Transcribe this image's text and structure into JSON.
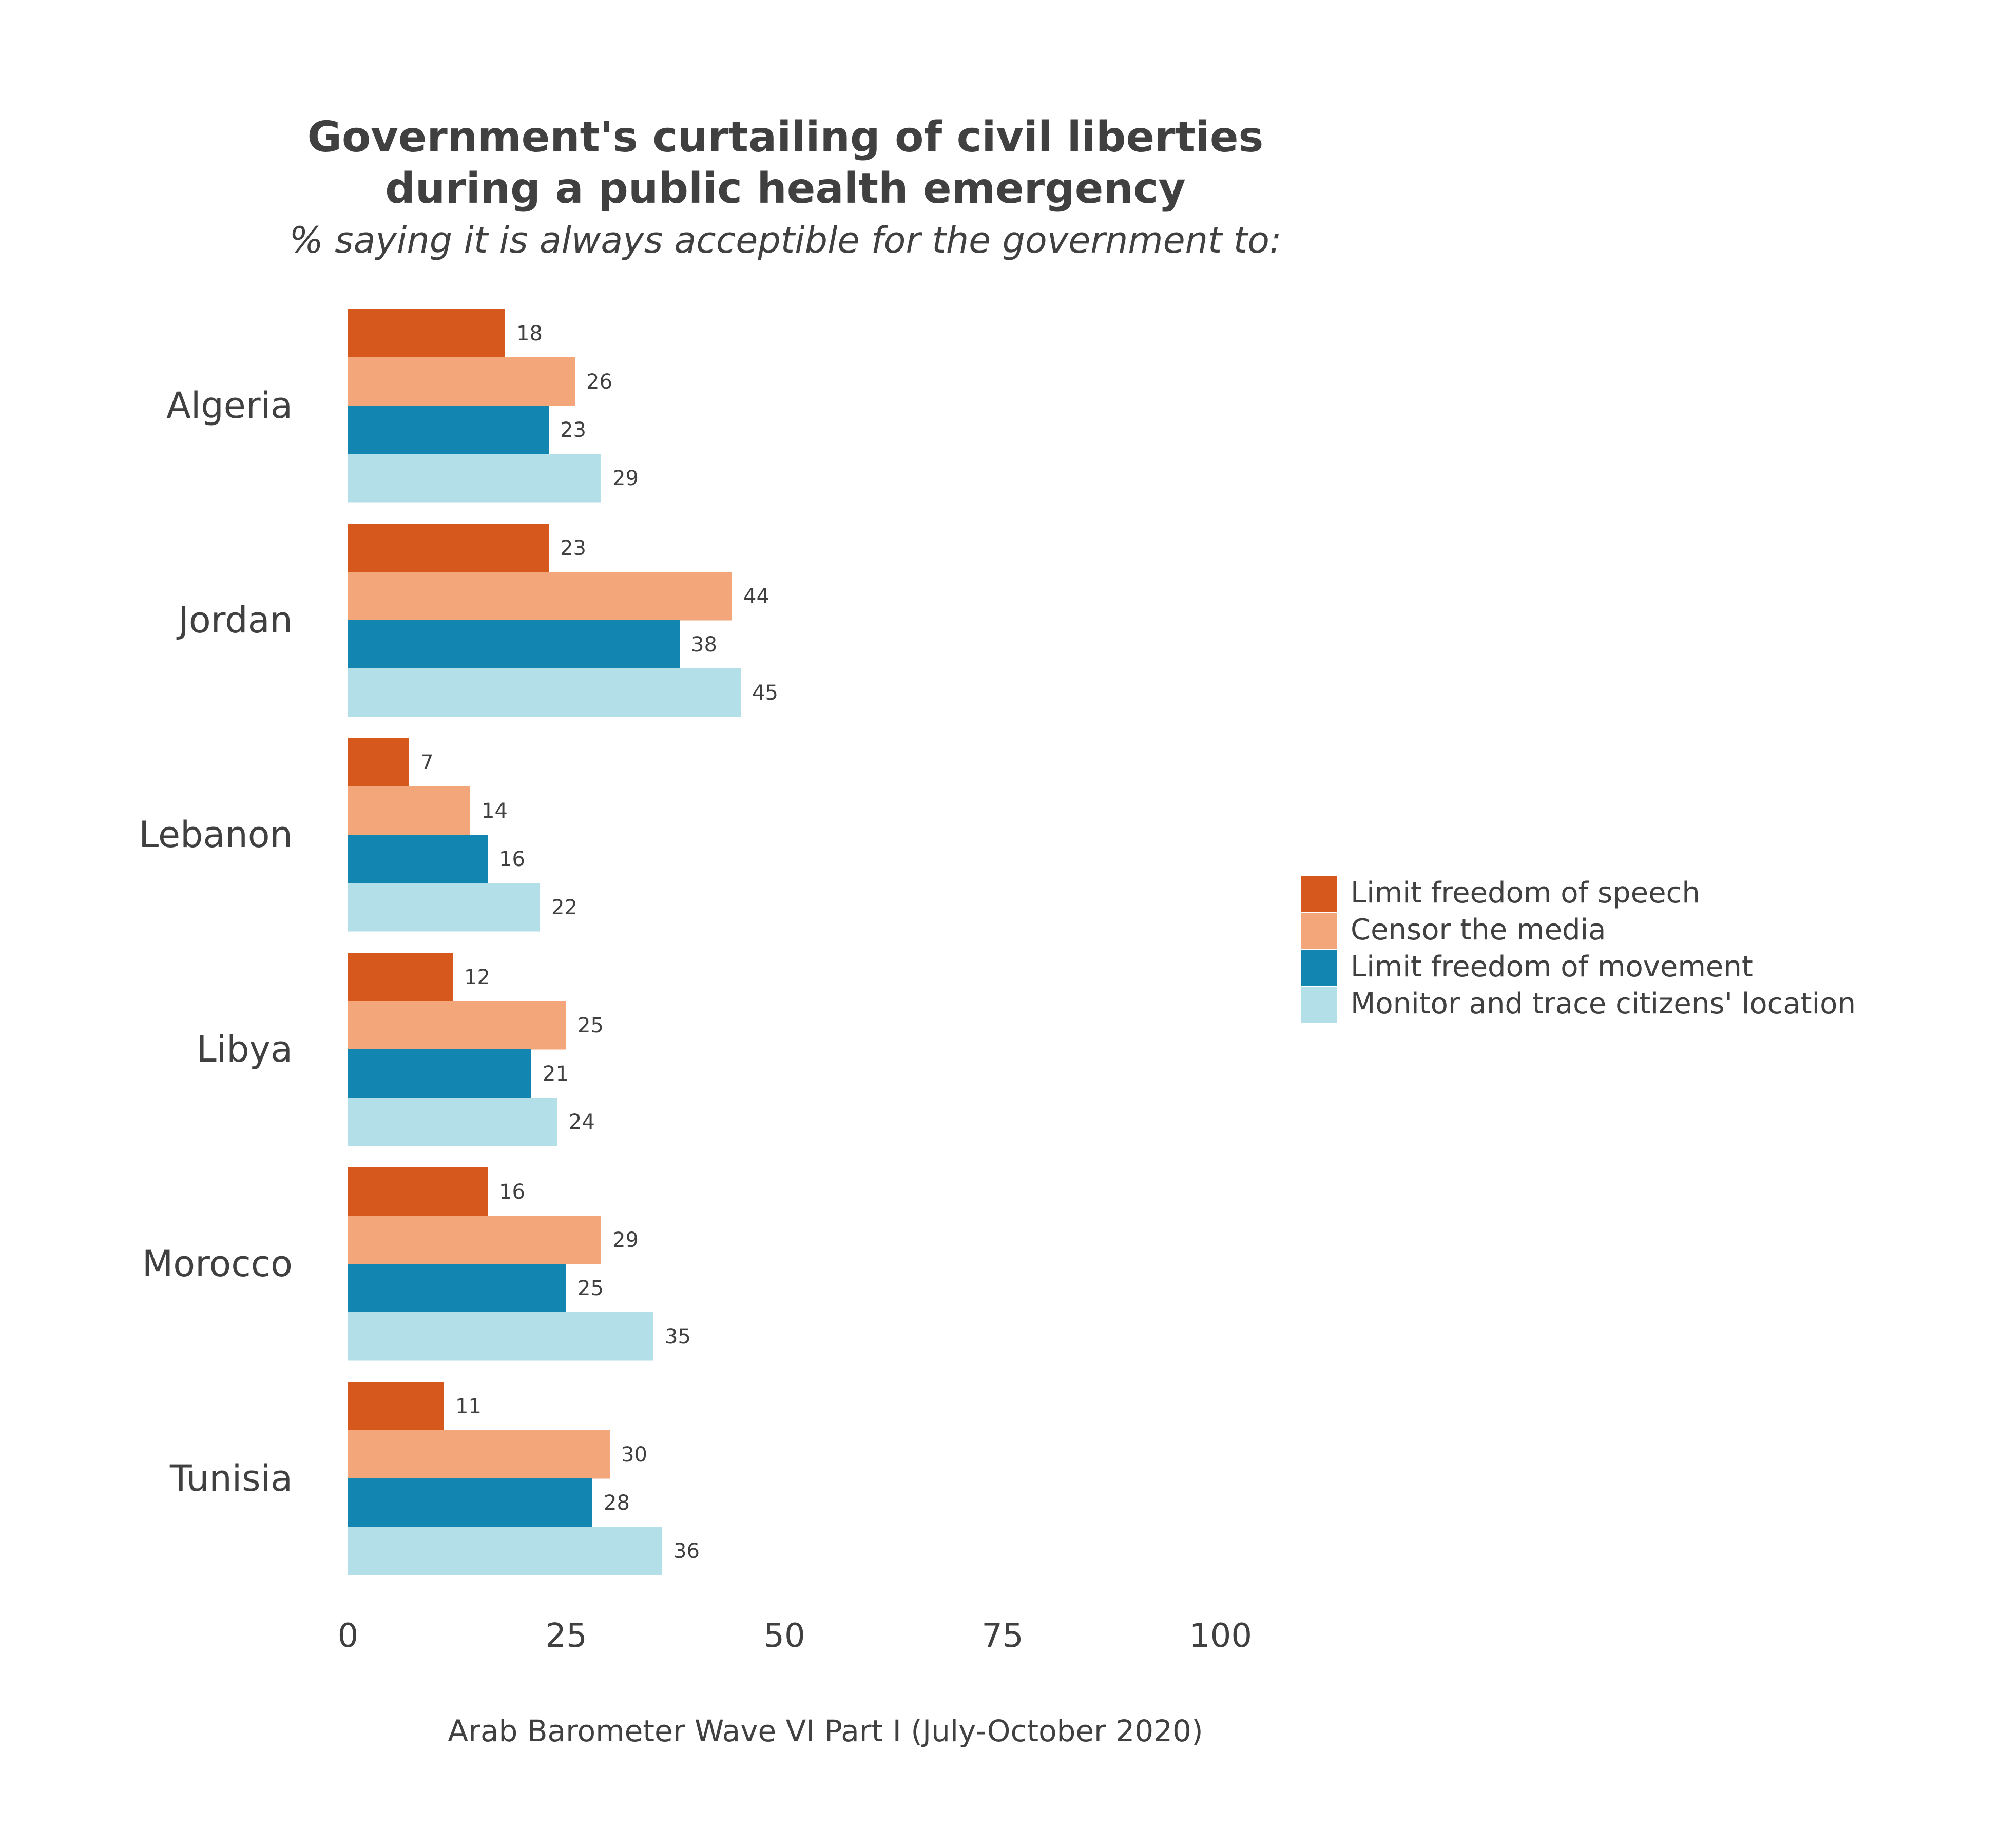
{
  "chart_data": {
    "type": "bar",
    "orientation": "horizontal",
    "title_line1": "Government's curtailing of civil liberties",
    "title_line2": "during a public health emergency",
    "subtitle": "% saying it is always acceptible for the government to:",
    "caption": "Arab Barometer Wave VI Part I (July-October 2020)",
    "xlim": [
      0,
      100
    ],
    "xticks": [
      0,
      25,
      50,
      75,
      100
    ],
    "grid": false,
    "legend_position": "right",
    "categories": [
      "Algeria",
      "Jordan",
      "Lebanon",
      "Libya",
      "Morocco",
      "Tunisia"
    ],
    "series": [
      {
        "name": "Limit freedom of speech",
        "color": "#d6581c",
        "values": [
          18,
          23,
          7,
          12,
          16,
          11
        ]
      },
      {
        "name": "Censor the media",
        "color": "#f2a67a",
        "values": [
          26,
          44,
          14,
          25,
          29,
          30
        ]
      },
      {
        "name": "Limit freedom of movement",
        "color": "#1286b1",
        "values": [
          23,
          38,
          16,
          21,
          25,
          28
        ]
      },
      {
        "name": "Monitor and trace citizens' location",
        "color": "#b3dfe9",
        "values": [
          29,
          45,
          22,
          24,
          35,
          36
        ]
      }
    ]
  }
}
